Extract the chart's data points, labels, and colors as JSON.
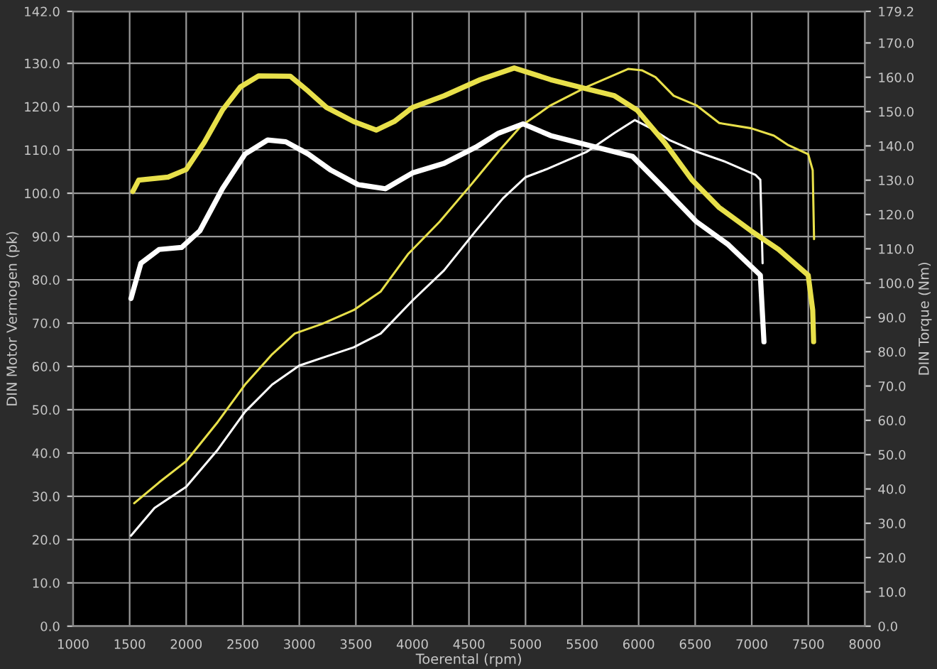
{
  "chart_data": {
    "type": "line",
    "xlabel": "Toerental (rpm)",
    "ylabel": "DIN Motor Vermogen (pk)",
    "y2label": "DIN Torque (Nm)",
    "xlim": [
      1000,
      8000
    ],
    "xticks": [
      1000,
      1500,
      2000,
      2500,
      3000,
      3500,
      4000,
      4500,
      5000,
      5500,
      6000,
      6500,
      7000,
      7500,
      8000
    ],
    "ylim": [
      0,
      142
    ],
    "yticks": [
      {
        "value": 0,
        "label": "0.0"
      },
      {
        "value": 10,
        "label": "10.0"
      },
      {
        "value": 20,
        "label": "20.0"
      },
      {
        "value": 30,
        "label": "30.0"
      },
      {
        "value": 40,
        "label": "40.0"
      },
      {
        "value": 50,
        "label": "50.0"
      },
      {
        "value": 60,
        "label": "60.0"
      },
      {
        "value": 70,
        "label": "70.0"
      },
      {
        "value": 80,
        "label": "80.0"
      },
      {
        "value": 90,
        "label": "90.0"
      },
      {
        "value": 100,
        "label": "100.0"
      },
      {
        "value": 110,
        "label": "110.0"
      },
      {
        "value": 120,
        "label": "120.0"
      },
      {
        "value": 130,
        "label": "130.0"
      },
      {
        "value": 142,
        "label": "142.0"
      }
    ],
    "y2lim": [
      0,
      179.2
    ],
    "y2ticks": [
      {
        "value": 0,
        "label": "0.0"
      },
      {
        "value": 10,
        "label": "10.0"
      },
      {
        "value": 20,
        "label": "20.0"
      },
      {
        "value": 30,
        "label": "30.0"
      },
      {
        "value": 40,
        "label": "40.0"
      },
      {
        "value": 50,
        "label": "50.0"
      },
      {
        "value": 60,
        "label": "60.0"
      },
      {
        "value": 70,
        "label": "70.0"
      },
      {
        "value": 80,
        "label": "80.0"
      },
      {
        "value": 90,
        "label": "90.0"
      },
      {
        "value": 100,
        "label": "100.0"
      },
      {
        "value": 110,
        "label": "110.0"
      },
      {
        "value": 120,
        "label": "120.0"
      },
      {
        "value": 130,
        "label": "130.0"
      },
      {
        "value": 140,
        "label": "140.0"
      },
      {
        "value": 150,
        "label": "150.0"
      },
      {
        "value": 160,
        "label": "160.0"
      },
      {
        "value": 170,
        "label": "170.0"
      },
      {
        "value": 179.2,
        "label": "179.2"
      }
    ],
    "grid": true,
    "legend": false,
    "series": [
      {
        "color": "#e8e04a",
        "axis": "y2",
        "x": [
          1528,
          1580,
          1840,
          2000,
          2160,
          2320,
          2480,
          2640,
          2920,
          3080,
          3240,
          3480,
          3680,
          3840,
          4000,
          4280,
          4600,
          4900,
          5222,
          5544,
          5786,
          5987,
          6229,
          6471,
          6713,
          6995,
          7237,
          7499,
          7539,
          7547
        ],
        "values": [
          126.7,
          130,
          130.9,
          133.1,
          141,
          150.4,
          157.2,
          160.4,
          160.3,
          155.9,
          151.2,
          147.1,
          144.6,
          147.1,
          151.2,
          154.6,
          159.3,
          162.7,
          159.3,
          156.6,
          154.6,
          150.4,
          141,
          130.1,
          122,
          115.2,
          109.8,
          102.3,
          92.1,
          82.9
        ]
      },
      {
        "color": "#ffffff",
        "axis": "y2",
        "x": [
          1512,
          1600,
          1760,
          1960,
          2120,
          2320,
          2520,
          2720,
          2880,
          3080,
          3280,
          3520,
          3760,
          4000,
          4280,
          4560,
          4760,
          4980,
          5222,
          5544,
          5947,
          6229,
          6511,
          6793,
          7076,
          7108
        ],
        "values": [
          95.5,
          105.8,
          109.8,
          110.4,
          115.2,
          127.5,
          137.6,
          141.7,
          141.2,
          137.6,
          132.9,
          128.7,
          127.5,
          132.1,
          134.9,
          139.6,
          143.7,
          146.4,
          143,
          140.3,
          136.9,
          127.5,
          117.9,
          111.2,
          102.3,
          82.9
        ]
      },
      {
        "color": "#e8e04a",
        "x": [
          1540,
          1760,
          2000,
          2280,
          2520,
          2760,
          2960,
          3200,
          3480,
          3720,
          3960,
          4240,
          4520,
          4760,
          4960,
          5222,
          5544,
          5907,
          6028,
          6149,
          6310,
          6511,
          6713,
          6995,
          7196,
          7317,
          7499,
          7539,
          7551
        ],
        "values": [
          28.4,
          33.2,
          38.1,
          47.2,
          55.8,
          62.8,
          67.6,
          69.8,
          73,
          77.3,
          85.9,
          93.4,
          102,
          109.6,
          115.5,
          120.3,
          124.6,
          128.7,
          128.4,
          126.8,
          122.5,
          120.3,
          116.2,
          115,
          113.3,
          111.2,
          109,
          105.3,
          89.4
        ]
      },
      {
        "color": "#ffffff",
        "x": [
          1512,
          1720,
          2000,
          2280,
          2520,
          2760,
          3000,
          3240,
          3480,
          3720,
          4000,
          4280,
          4560,
          4800,
          5000,
          5181,
          5544,
          5786,
          5967,
          6108,
          6270,
          6511,
          6753,
          7035,
          7076,
          7096
        ],
        "values": [
          20.9,
          27.3,
          32.2,
          40.8,
          49.5,
          55.8,
          60.2,
          62.3,
          64.4,
          67.6,
          75.2,
          82.2,
          91.3,
          98.8,
          103.7,
          105.5,
          109.6,
          113.9,
          116.9,
          115,
          112.3,
          109.6,
          107.4,
          104.2,
          103.1,
          83.8
        ]
      }
    ]
  }
}
